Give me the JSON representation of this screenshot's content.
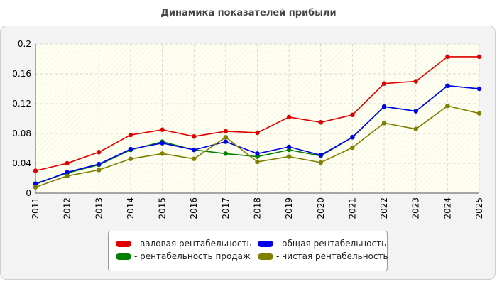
{
  "chart_data": {
    "type": "line",
    "title": "Динамика показателей прибыли",
    "xlabel": "",
    "ylabel": "",
    "categories": [
      "2011",
      "2012",
      "2013",
      "2014",
      "2015",
      "2016",
      "2017",
      "2018",
      "2019",
      "2020",
      "2021",
      "2022",
      "2023",
      "2024",
      "2025"
    ],
    "ylim": [
      0,
      0.2
    ],
    "yticks": [
      0,
      0.04,
      0.08,
      0.12,
      0.16,
      0.2
    ],
    "ytick_labels": [
      "0",
      "0.04",
      "0.08",
      "0.12",
      "0.16",
      "0.2"
    ],
    "grid": true,
    "legend_position": "bottom-center",
    "series": [
      {
        "name": "- валовая рентабельность",
        "color": "#e00000",
        "values": [
          0.03,
          0.04,
          0.055,
          0.078,
          0.085,
          0.076,
          0.083,
          0.081,
          0.102,
          0.095,
          0.105,
          0.147,
          0.15,
          0.183,
          0.183
        ]
      },
      {
        "name": "- рентабельность продаж",
        "color": "#008000",
        "values": [
          0.013,
          0.027,
          0.038,
          0.058,
          0.069,
          0.058,
          0.053,
          0.049,
          0.058,
          0.05,
          0.075,
          0.116,
          0.11,
          0.144,
          0.14
        ]
      },
      {
        "name": "- общая рентабельность",
        "color": "#0000ee",
        "values": [
          0.012,
          0.028,
          0.039,
          0.059,
          0.067,
          0.058,
          0.069,
          0.053,
          0.062,
          0.051,
          0.075,
          0.116,
          0.11,
          0.144,
          0.14
        ]
      },
      {
        "name": "- чистая рентабельность",
        "color": "#808000",
        "values": [
          0.008,
          0.023,
          0.031,
          0.046,
          0.053,
          0.046,
          0.075,
          0.042,
          0.049,
          0.041,
          0.061,
          0.094,
          0.086,
          0.117,
          0.107
        ]
      }
    ]
  }
}
